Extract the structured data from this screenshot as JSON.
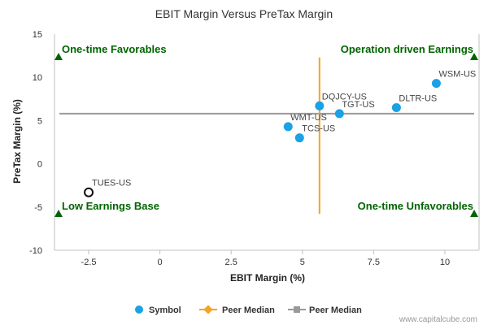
{
  "chart_data": {
    "type": "scatter",
    "title": "EBIT Margin Versus PreTax Margin",
    "xlabel": "EBIT Margin (%)",
    "ylabel": "PreTax Margin (%)",
    "xlim": [
      -3.7,
      11.2
    ],
    "ylim": [
      -10,
      15
    ],
    "x_ticks": [
      "-2.5",
      "0",
      "2.5",
      "5",
      "7.5",
      "10"
    ],
    "y_ticks": [
      "15",
      "10",
      "5",
      "0",
      "-5",
      "-10"
    ],
    "points": [
      {
        "label": "WSM-US",
        "x": 9.7,
        "y": 9.3
      },
      {
        "label": "DQJCY-US",
        "x": 5.6,
        "y": 6.7
      },
      {
        "label": "TGT-US",
        "x": 6.3,
        "y": 5.8
      },
      {
        "label": "DLTR-US",
        "x": 8.3,
        "y": 6.5
      },
      {
        "label": "WMT-US",
        "x": 4.5,
        "y": 4.3
      },
      {
        "label": "TCS-US",
        "x": 4.9,
        "y": 3.0
      }
    ],
    "highlight": {
      "label": "TUES-US",
      "x": -2.5,
      "y": -3.3
    },
    "peer_median_x": 5.6,
    "peer_median_y": 5.8,
    "quadrants": {
      "top_left": "One-time Favorables",
      "top_right": "Operation driven Earnings",
      "bottom_left": "Low Earnings Base",
      "bottom_right": "One-time Unfavorables"
    },
    "legend": [
      {
        "name": "Symbol",
        "color": "#1aa1e6"
      },
      {
        "name": "Peer Median",
        "color": "#f7a31c"
      },
      {
        "name": "Peer Median",
        "color": "#999999"
      }
    ],
    "legend_placement": "bottom-center",
    "grid": false
  },
  "credit": "www.capitalcube.com"
}
